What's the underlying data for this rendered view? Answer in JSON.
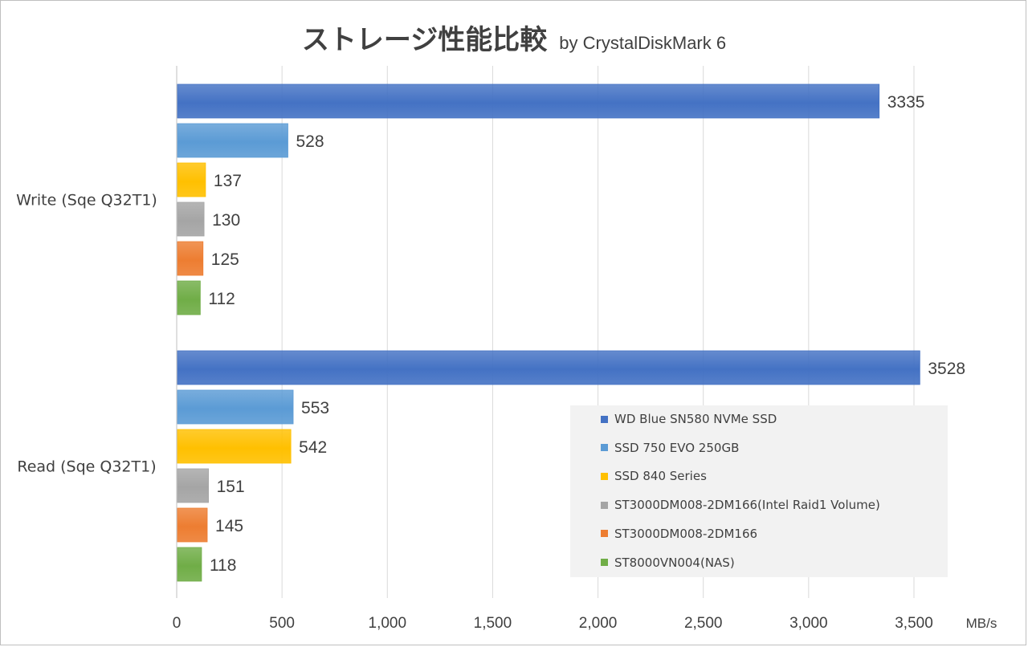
{
  "title": "ストレージ性能比較",
  "subtitle": "by CrystalDiskMark 6",
  "chart_data": {
    "type": "bar",
    "orientation": "horizontal",
    "categories": [
      "Write (Sqe Q32T1)",
      "Read (Sqe Q32T1)"
    ],
    "series": [
      {
        "name": "WD Blue SN580 NVMe SSD",
        "color": "#4472c4",
        "values": [
          3335,
          3528
        ]
      },
      {
        "name": "SSD 750 EVO 250GB",
        "color": "#5b9bd5",
        "values": [
          528,
          553
        ]
      },
      {
        "name": "SSD 840 Series",
        "color": "#ffc000",
        "values": [
          137,
          542
        ]
      },
      {
        "name": "ST3000DM008-2DM166(Intel Raid1 Volume)",
        "color": "#a5a5a5",
        "values": [
          130,
          151
        ]
      },
      {
        "name": "ST3000DM008-2DM166",
        "color": "#ed7d31",
        "values": [
          125,
          145
        ]
      },
      {
        "name": "ST8000VN004(NAS)",
        "color": "#70ad47",
        "values": [
          112,
          118
        ]
      }
    ],
    "xlim": [
      0,
      3500
    ],
    "xticks": [
      "0",
      "500",
      "1,000",
      "1,500",
      "2,000",
      "2,500",
      "3,000",
      "3,500"
    ],
    "unit_label": "MB/s",
    "grid": true,
    "legend_position": "bottom-right"
  }
}
